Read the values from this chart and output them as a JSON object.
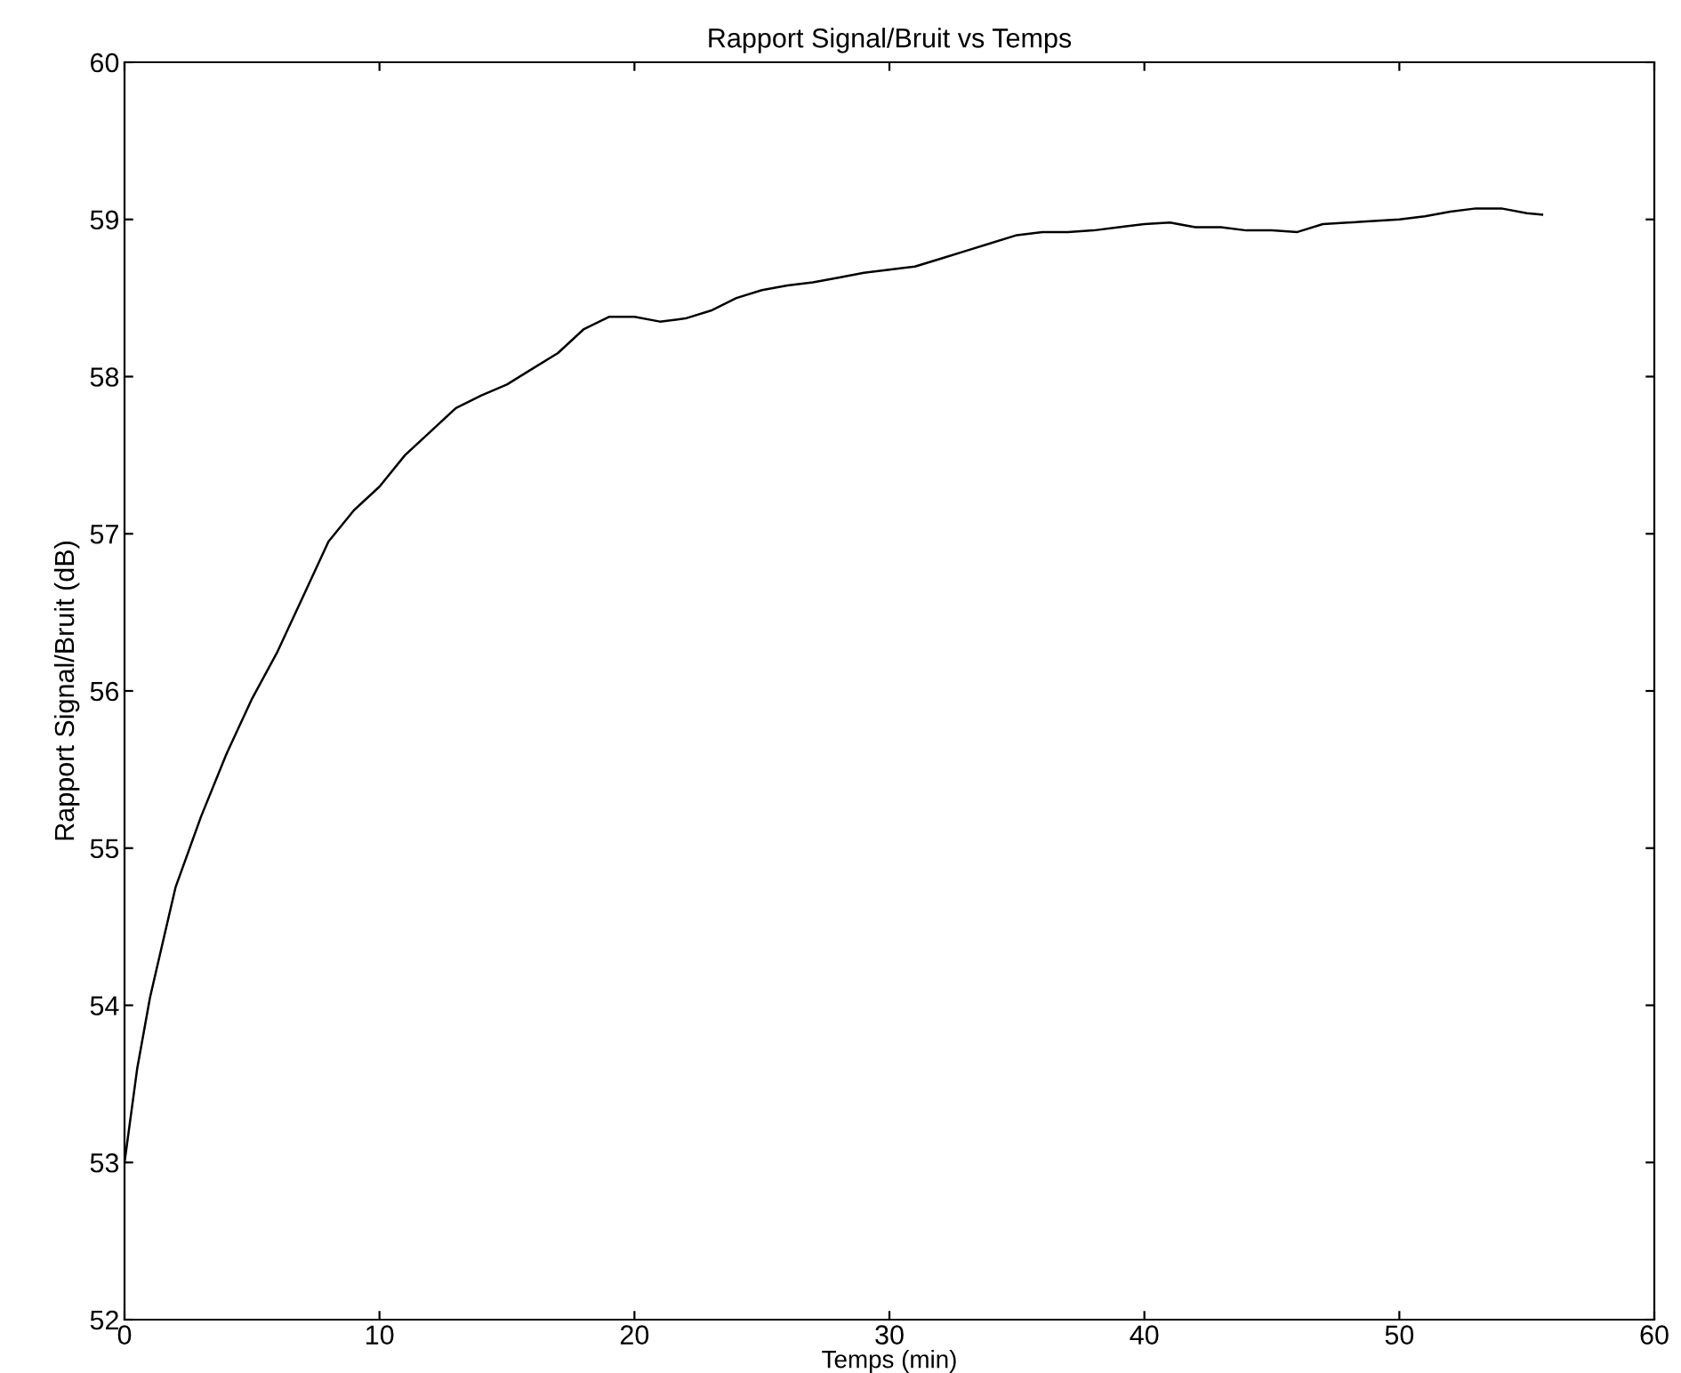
{
  "chart_data": {
    "type": "line",
    "title": "Rapport Signal/Bruit vs Temps",
    "xlabel": "Temps (min)",
    "ylabel": "Rapport Signal/Bruit (dB)",
    "xlim": [
      0,
      60
    ],
    "xticks": [
      0,
      10,
      20,
      30,
      40,
      50,
      60
    ],
    "ylim": [
      52,
      60
    ],
    "yticks": [
      52,
      53,
      54,
      55,
      56,
      57,
      58,
      59,
      60
    ],
    "grid": false,
    "legend": false,
    "series": [
      {
        "color": "#000000",
        "x": [
          0,
          0.5,
          1,
          1.5,
          2,
          3,
          4,
          5,
          6,
          7,
          8,
          9,
          10,
          11,
          12,
          13,
          14,
          15,
          16,
          17,
          18,
          19,
          20,
          21,
          22,
          23,
          24,
          25,
          26,
          27,
          28,
          29,
          30,
          31,
          32,
          33,
          34,
          35,
          36,
          37,
          38,
          39,
          40,
          41,
          42,
          43,
          44,
          45,
          46,
          47,
          48,
          49,
          50,
          51,
          52,
          53,
          54,
          55,
          55.6
        ],
        "values": [
          53.0,
          53.6,
          54.05,
          54.4,
          54.75,
          55.2,
          55.6,
          55.95,
          56.25,
          56.6,
          56.95,
          57.15,
          57.3,
          57.5,
          57.65,
          57.8,
          57.88,
          57.95,
          58.05,
          58.15,
          58.3,
          58.38,
          58.38,
          58.35,
          58.37,
          58.42,
          58.5,
          58.55,
          58.58,
          58.6,
          58.63,
          58.66,
          58.68,
          58.7,
          58.75,
          58.8,
          58.85,
          58.9,
          58.92,
          58.92,
          58.93,
          58.95,
          58.97,
          58.98,
          58.95,
          58.95,
          58.93,
          58.93,
          58.92,
          58.97,
          58.98,
          58.99,
          59.0,
          59.02,
          59.05,
          59.07,
          59.07,
          59.04,
          59.03
        ]
      }
    ]
  }
}
